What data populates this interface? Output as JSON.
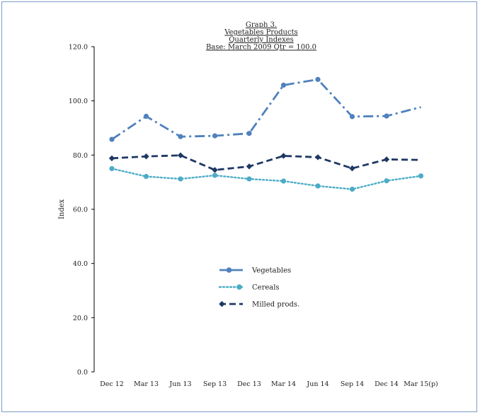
{
  "chart_data": {
    "type": "line",
    "title_lines": [
      "Graph 3.",
      "Vegetables Products",
      "Quarterly Indexes",
      "Base: March 2009 Qtr  = 100.0"
    ],
    "xlabel": "",
    "ylabel": "Index",
    "ylim": [
      0,
      120
    ],
    "yticks": [
      "0.0",
      "20.0",
      "40.0",
      "60.0",
      "80.0",
      "100.0",
      "120.0"
    ],
    "categories": [
      "Dec 12",
      "Mar 13",
      "Jun 13",
      "Sep 13",
      "Dec 13",
      "Mar 14",
      "Jun 14",
      "Sep 14",
      "Dec 14",
      "Mar  15(p)"
    ],
    "grid": false,
    "legend_position": "center",
    "series": [
      {
        "name": "Vegetables",
        "values": [
          85.8,
          94.3,
          86.8,
          87.1,
          88.0,
          105.8,
          107.9,
          94.2,
          94.4,
          97.7
        ],
        "color": "#4f81bd",
        "style": "dash-dot",
        "marker": "circle",
        "last_marker": false
      },
      {
        "name": "Cereals",
        "values": [
          75.0,
          72.1,
          71.2,
          72.5,
          71.2,
          70.4,
          68.6,
          67.4,
          70.5,
          72.3
        ],
        "color": "#4bacc6",
        "style": "dotted",
        "marker": "circle",
        "last_marker": true
      },
      {
        "name": "Milled prods.",
        "values": [
          78.8,
          79.5,
          79.9,
          74.5,
          75.8,
          79.7,
          79.2,
          75.1,
          78.4,
          78.2
        ],
        "color": "#1f3864",
        "style": "dashed",
        "marker": "diamond",
        "last_marker": false
      }
    ]
  }
}
